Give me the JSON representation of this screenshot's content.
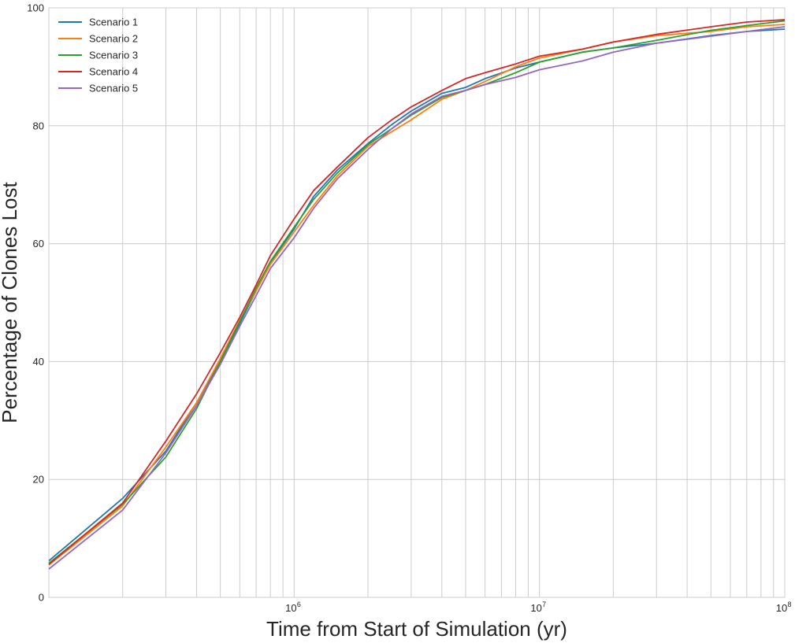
{
  "chart_data": {
    "type": "line",
    "title": "",
    "xlabel": "Time from Start of Simulation (yr)",
    "ylabel": "Percentage of Clones Lost",
    "xscale": "log",
    "xlim": [
      100000,
      100000000
    ],
    "ylim": [
      0,
      100
    ],
    "x_tick_labels": [
      {
        "value": 1000000,
        "base": "10",
        "exp": "6"
      },
      {
        "value": 10000000,
        "base": "10",
        "exp": "7"
      },
      {
        "value": 100000000,
        "base": "10",
        "exp": "8"
      }
    ],
    "y_ticks": [
      0,
      20,
      40,
      60,
      80,
      100
    ],
    "grid": true,
    "legend_position": "top-left",
    "series": [
      {
        "name": "Scenario 1",
        "color": "#1f77b4",
        "x": [
          100000,
          200000,
          300000,
          400000,
          500000,
          600000,
          700000,
          800000,
          1000000,
          1200000,
          1500000,
          2000000,
          2500000,
          3000000,
          4000000,
          5000000,
          6000000,
          8000000,
          10000000,
          15000000,
          20000000,
          30000000,
          50000000,
          70000000,
          100000000
        ],
        "y": [
          6.2,
          16.8,
          24.8,
          33.0,
          40.0,
          46.5,
          52.0,
          56.8,
          62.5,
          68.0,
          72.5,
          77.0,
          80.2,
          82.5,
          85.5,
          86.5,
          88.0,
          89.8,
          90.8,
          92.5,
          93.2,
          94.0,
          95.3,
          96.0,
          96.4
        ]
      },
      {
        "name": "Scenario 2",
        "color": "#ff7f0e",
        "x": [
          100000,
          200000,
          300000,
          400000,
          500000,
          600000,
          700000,
          800000,
          1000000,
          1200000,
          1500000,
          2000000,
          2500000,
          3000000,
          4000000,
          5000000,
          6000000,
          8000000,
          10000000,
          15000000,
          20000000,
          30000000,
          50000000,
          70000000,
          100000000
        ],
        "y": [
          5.5,
          15.5,
          25.5,
          33.0,
          40.5,
          47.0,
          52.0,
          56.5,
          62.0,
          66.5,
          71.5,
          76.5,
          79.0,
          81.0,
          84.5,
          86.0,
          87.5,
          90.0,
          91.5,
          93.0,
          94.2,
          95.3,
          96.0,
          96.8,
          97.2
        ]
      },
      {
        "name": "Scenario 3",
        "color": "#2ca02c",
        "x": [
          100000,
          200000,
          300000,
          400000,
          500000,
          600000,
          700000,
          800000,
          1000000,
          1200000,
          1500000,
          2000000,
          2500000,
          3000000,
          4000000,
          5000000,
          6000000,
          8000000,
          10000000,
          15000000,
          20000000,
          30000000,
          50000000,
          70000000,
          100000000
        ],
        "y": [
          5.8,
          15.8,
          23.8,
          32.0,
          40.0,
          46.8,
          52.5,
          57.0,
          62.8,
          67.5,
          72.0,
          76.8,
          79.5,
          81.8,
          84.8,
          86.0,
          87.0,
          89.0,
          90.8,
          92.5,
          93.2,
          94.5,
          96.2,
          97.0,
          97.8
        ]
      },
      {
        "name": "Scenario 4",
        "color": "#d62728",
        "x": [
          100000,
          200000,
          300000,
          400000,
          500000,
          600000,
          700000,
          800000,
          1000000,
          1200000,
          1500000,
          2000000,
          2500000,
          3000000,
          4000000,
          5000000,
          6000000,
          8000000,
          10000000,
          15000000,
          20000000,
          30000000,
          50000000,
          70000000,
          100000000
        ],
        "y": [
          5.6,
          16.0,
          26.5,
          34.5,
          41.5,
          47.5,
          53.0,
          58.0,
          64.2,
          69.0,
          73.0,
          78.0,
          81.0,
          83.2,
          86.0,
          88.0,
          89.0,
          90.5,
          91.8,
          93.0,
          94.2,
          95.5,
          96.8,
          97.6,
          98.0
        ]
      },
      {
        "name": "Scenario 5",
        "color": "#9467bd",
        "x": [
          100000,
          200000,
          300000,
          400000,
          500000,
          600000,
          700000,
          800000,
          1000000,
          1200000,
          1500000,
          2000000,
          2500000,
          3000000,
          4000000,
          5000000,
          6000000,
          8000000,
          10000000,
          15000000,
          20000000,
          30000000,
          50000000,
          70000000,
          100000000
        ],
        "y": [
          4.8,
          14.8,
          24.5,
          32.5,
          39.5,
          46.0,
          51.2,
          55.8,
          61.0,
          66.0,
          71.0,
          76.0,
          79.5,
          82.0,
          85.0,
          86.0,
          87.0,
          88.2,
          89.5,
          91.0,
          92.5,
          94.0,
          95.2,
          96.0,
          96.8
        ]
      }
    ]
  }
}
